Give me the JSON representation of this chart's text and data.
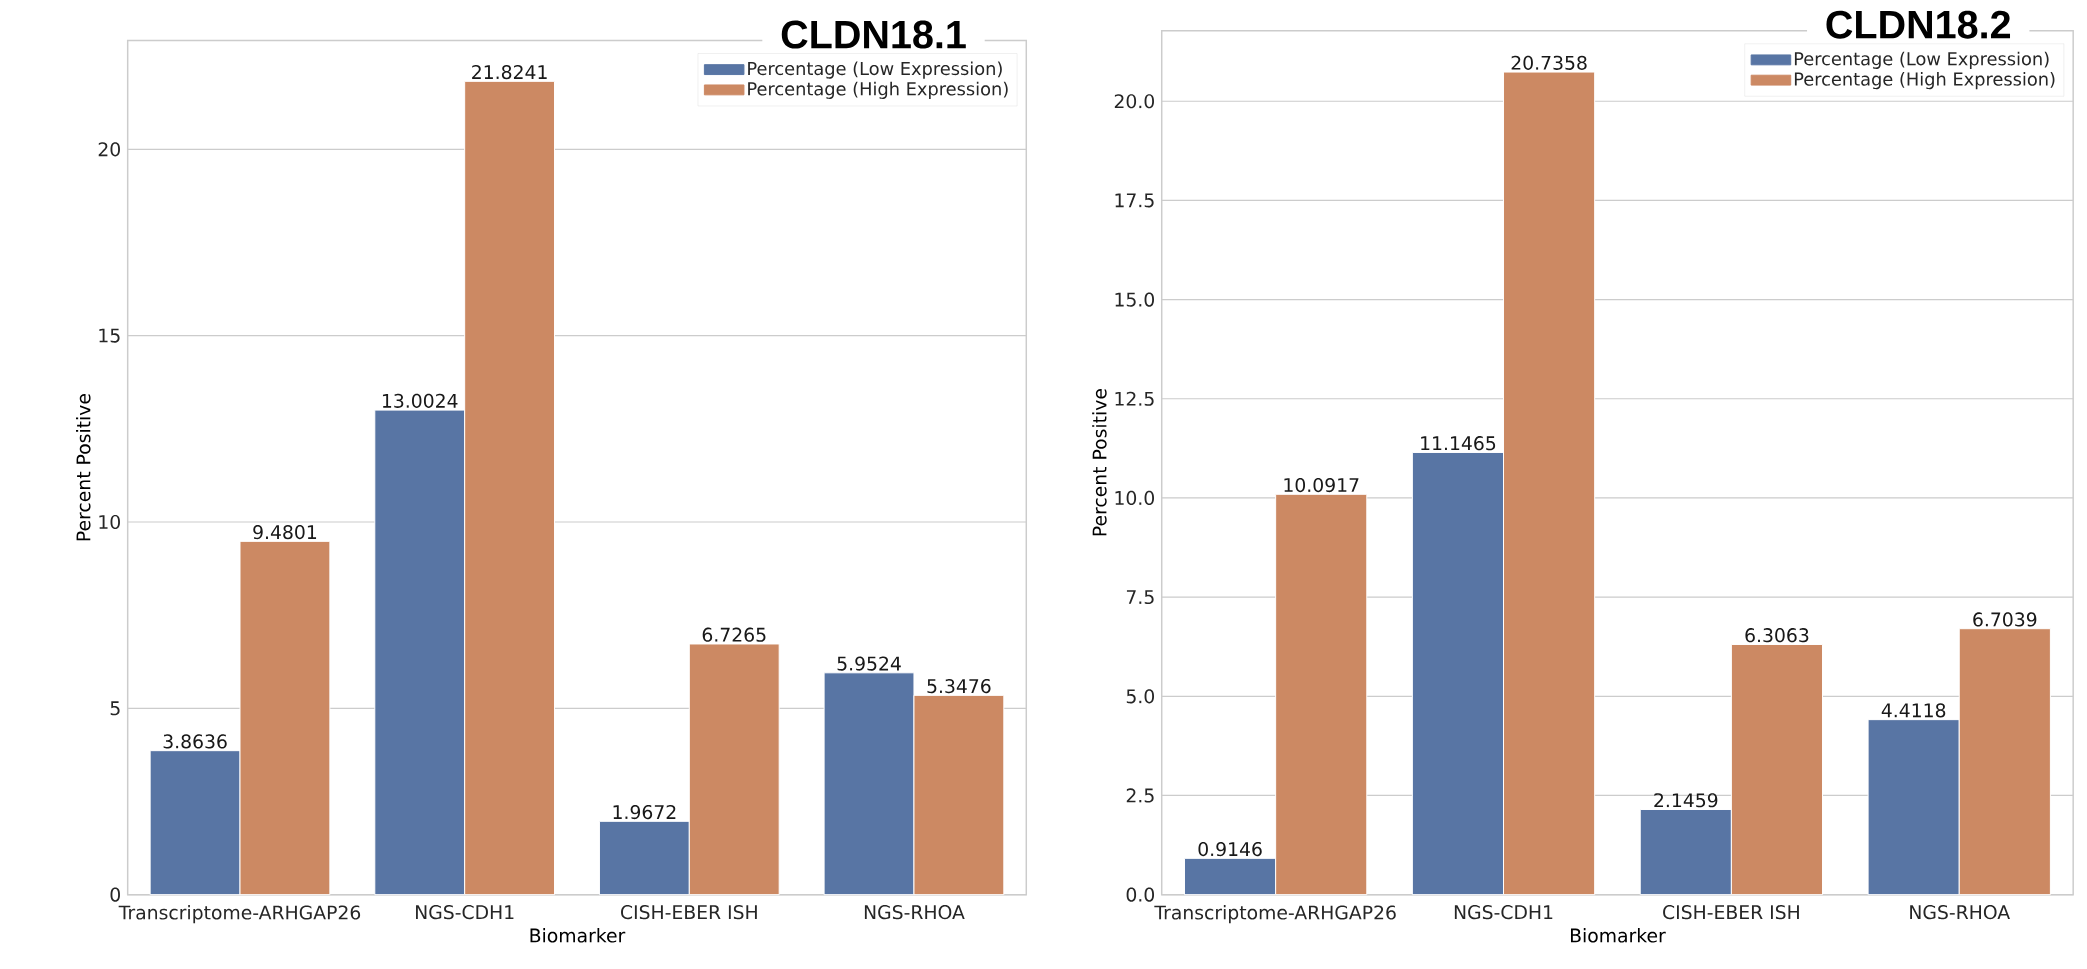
{
  "chart_data": [
    {
      "type": "bar",
      "title": "CLDN18.1",
      "xlabel": "Biomarker",
      "ylabel": "Percent Positive",
      "categories": [
        "Transcriptome-ARHGAP26",
        "NGS-CDH1",
        "CISH-EBER ISH",
        "NGS-RHOA"
      ],
      "series": [
        {
          "name": "Percentage (Low Expression)",
          "color": "#5875a4",
          "values": [
            3.8636,
            13.0024,
            1.9672,
            5.9524
          ]
        },
        {
          "name": "Percentage (High Expression)",
          "color": "#cc8963",
          "values": [
            9.4801,
            21.8241,
            6.7265,
            5.3476
          ]
        }
      ],
      "ylim": [
        0,
        22.92
      ],
      "yticks": [
        0,
        5,
        10,
        15,
        20
      ],
      "grid": "y",
      "legend": "top right",
      "data_labels": true
    },
    {
      "type": "bar",
      "title": "CLDN18.2",
      "xlabel": "Biomarker",
      "ylabel": "Percent Positive",
      "categories": [
        "Transcriptome-ARHGAP26",
        "NGS-CDH1",
        "CISH-EBER ISH",
        "NGS-RHOA"
      ],
      "series": [
        {
          "name": "Percentage (Low Expression)",
          "color": "#5875a4",
          "values": [
            0.9146,
            11.1465,
            2.1459,
            4.4118
          ]
        },
        {
          "name": "Percentage (High Expression)",
          "color": "#cc8963",
          "values": [
            10.0917,
            20.7358,
            6.3063,
            6.7039
          ]
        }
      ],
      "ylim": [
        0,
        21.78
      ],
      "yticks": [
        {
          "value": 0,
          "label": "0.0"
        },
        2.5,
        {
          "value": 5,
          "label": "5.0"
        },
        7.5,
        {
          "value": 10,
          "label": "10.0"
        },
        12.5,
        {
          "value": 15,
          "label": "15.0"
        },
        17.5,
        {
          "value": 20,
          "label": "20.0"
        }
      ],
      "grid": "y",
      "legend": "top right",
      "data_labels": true
    }
  ]
}
